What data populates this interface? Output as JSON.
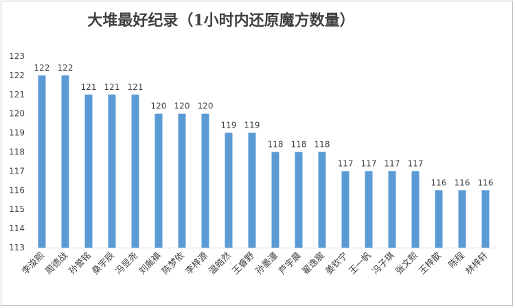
{
  "chart_data": {
    "type": "bar",
    "title": "大堆最好纪录（1小时内还原魔方数量）",
    "xlabel": "",
    "ylabel": "",
    "ylim": [
      113,
      123
    ],
    "yticks": [
      113,
      114,
      115,
      116,
      117,
      118,
      119,
      120,
      121,
      122,
      123
    ],
    "grid": false,
    "legend": "none",
    "bar_color": "#5b9bd5",
    "categories": [
      "李浚熙",
      "周德战",
      "孙誉铭",
      "桑宇辰",
      "冯昱尧",
      "刘胤禛",
      "陈梦依",
      "李梓源",
      "温皓然",
      "王睿野",
      "孙墨潼",
      "芦宇晨",
      "翟逸宸",
      "姜钦宁",
      "王一帆",
      "冯子琪",
      "张文熙",
      "王梓歆",
      "陈程",
      "林梓轩"
    ],
    "values": [
      122,
      122,
      121,
      121,
      121,
      120,
      120,
      120,
      119,
      119,
      118,
      118,
      118,
      117,
      117,
      117,
      117,
      116,
      116,
      116
    ]
  }
}
